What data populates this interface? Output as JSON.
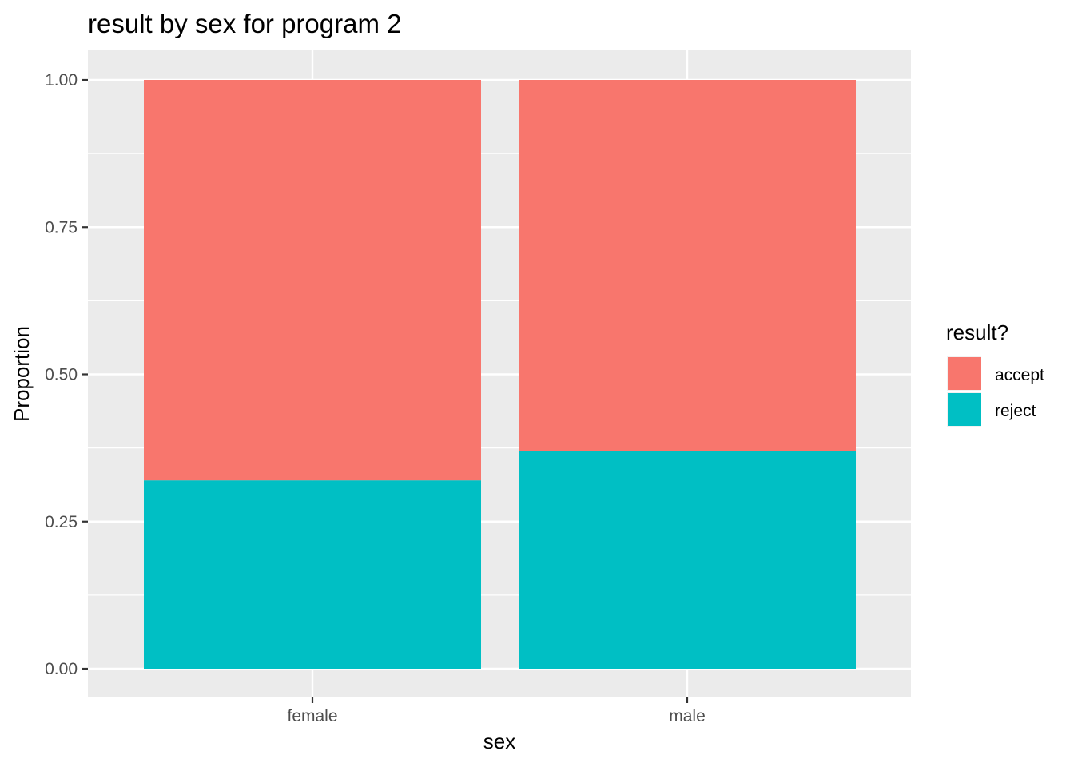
{
  "chart_data": {
    "type": "bar",
    "stacked": true,
    "title": "result by sex for program 2",
    "xlabel": "sex",
    "ylabel": "Proportion",
    "categories": [
      "female",
      "male"
    ],
    "series": [
      {
        "name": "accept",
        "values": [
          0.68,
          0.63
        ],
        "color": "#F8766D"
      },
      {
        "name": "reject",
        "values": [
          0.32,
          0.37
        ],
        "color": "#00BFC4"
      }
    ],
    "ylim": [
      0,
      1
    ],
    "yticks": [
      "0.00",
      "0.25",
      "0.50",
      "0.75",
      "1.00"
    ],
    "ytick_values": [
      0,
      0.25,
      0.5,
      0.75,
      1.0
    ],
    "grid": true,
    "legend": {
      "title": "result?",
      "position": "right"
    },
    "panel_background": "#EBEBEB"
  }
}
